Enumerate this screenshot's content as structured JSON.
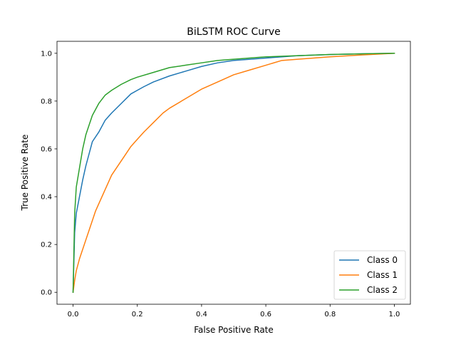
{
  "chart_data": {
    "type": "line",
    "title": "BiLSTM ROC Curve",
    "xlabel": "False Positive Rate",
    "ylabel": "True Positive Rate",
    "xlim": [
      -0.05,
      1.05
    ],
    "ylim": [
      -0.05,
      1.05
    ],
    "xticks": [
      0.0,
      0.2,
      0.4,
      0.6,
      0.8,
      1.0
    ],
    "xtick_labels": [
      "0.0",
      "0.2",
      "0.4",
      "0.6",
      "0.8",
      "1.0"
    ],
    "yticks": [
      0.0,
      0.2,
      0.4,
      0.6,
      0.8,
      1.0
    ],
    "ytick_labels": [
      "0.0",
      "0.2",
      "0.4",
      "0.6",
      "0.8",
      "1.0"
    ],
    "grid": false,
    "legend_position": "lower-right",
    "series": [
      {
        "name": "Class 0",
        "color": "#1f77b4",
        "points": [
          [
            0,
            0
          ],
          [
            0.005,
            0.25
          ],
          [
            0.01,
            0.33
          ],
          [
            0.02,
            0.4
          ],
          [
            0.03,
            0.47
          ],
          [
            0.04,
            0.53
          ],
          [
            0.05,
            0.58
          ],
          [
            0.06,
            0.63
          ],
          [
            0.08,
            0.67
          ],
          [
            0.1,
            0.72
          ],
          [
            0.12,
            0.75
          ],
          [
            0.15,
            0.79
          ],
          [
            0.18,
            0.83
          ],
          [
            0.2,
            0.845
          ],
          [
            0.22,
            0.86
          ],
          [
            0.25,
            0.88
          ],
          [
            0.3,
            0.905
          ],
          [
            0.35,
            0.925
          ],
          [
            0.4,
            0.945
          ],
          [
            0.45,
            0.96
          ],
          [
            0.5,
            0.97
          ],
          [
            0.6,
            0.98
          ],
          [
            0.7,
            0.99
          ],
          [
            0.8,
            0.995
          ],
          [
            0.9,
            0.998
          ],
          [
            1.0,
            1.0
          ]
        ]
      },
      {
        "name": "Class 1",
        "color": "#ff7f0e",
        "points": [
          [
            0,
            0
          ],
          [
            0.005,
            0.05
          ],
          [
            0.01,
            0.09
          ],
          [
            0.02,
            0.14
          ],
          [
            0.03,
            0.18
          ],
          [
            0.04,
            0.22
          ],
          [
            0.05,
            0.26
          ],
          [
            0.06,
            0.3
          ],
          [
            0.07,
            0.34
          ],
          [
            0.08,
            0.37
          ],
          [
            0.1,
            0.43
          ],
          [
            0.12,
            0.49
          ],
          [
            0.14,
            0.53
          ],
          [
            0.16,
            0.57
          ],
          [
            0.18,
            0.61
          ],
          [
            0.2,
            0.64
          ],
          [
            0.22,
            0.67
          ],
          [
            0.25,
            0.71
          ],
          [
            0.28,
            0.75
          ],
          [
            0.3,
            0.77
          ],
          [
            0.35,
            0.81
          ],
          [
            0.4,
            0.85
          ],
          [
            0.45,
            0.88
          ],
          [
            0.5,
            0.91
          ],
          [
            0.55,
            0.93
          ],
          [
            0.6,
            0.95
          ],
          [
            0.65,
            0.97
          ],
          [
            0.7,
            0.975
          ],
          [
            0.8,
            0.985
          ],
          [
            0.9,
            0.993
          ],
          [
            1.0,
            1.0
          ]
        ]
      },
      {
        "name": "Class 2",
        "color": "#2ca02c",
        "points": [
          [
            0,
            0
          ],
          [
            0.005,
            0.33
          ],
          [
            0.01,
            0.44
          ],
          [
            0.02,
            0.52
          ],
          [
            0.03,
            0.6
          ],
          [
            0.04,
            0.66
          ],
          [
            0.05,
            0.7
          ],
          [
            0.06,
            0.74
          ],
          [
            0.08,
            0.79
          ],
          [
            0.1,
            0.825
          ],
          [
            0.12,
            0.845
          ],
          [
            0.15,
            0.87
          ],
          [
            0.18,
            0.89
          ],
          [
            0.2,
            0.9
          ],
          [
            0.25,
            0.92
          ],
          [
            0.3,
            0.94
          ],
          [
            0.35,
            0.95
          ],
          [
            0.4,
            0.96
          ],
          [
            0.45,
            0.97
          ],
          [
            0.5,
            0.975
          ],
          [
            0.6,
            0.985
          ],
          [
            0.7,
            0.99
          ],
          [
            0.8,
            0.995
          ],
          [
            0.9,
            0.998
          ],
          [
            1.0,
            1.0
          ]
        ]
      }
    ]
  }
}
